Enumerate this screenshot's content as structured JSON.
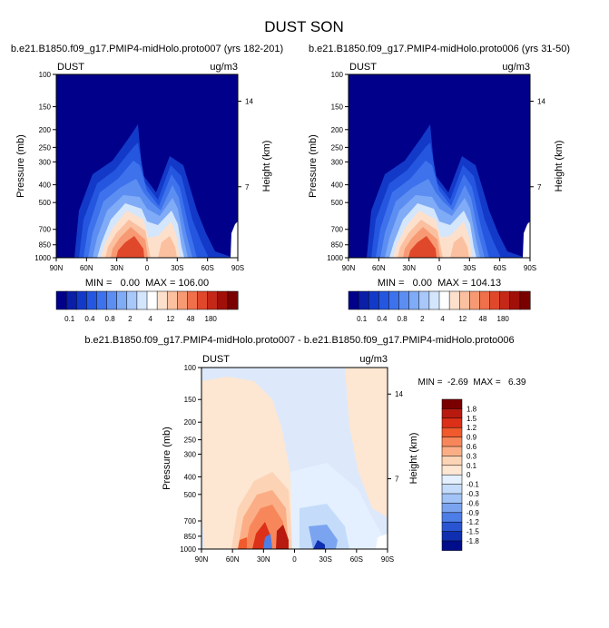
{
  "page": {
    "title": "DUST SON"
  },
  "chart_data": [
    {
      "type": "heatmap",
      "id": "panel1",
      "title": "b.e21.B1850.f09_g17.PMIP4-midHolo.proto007 (yrs 182-201)",
      "corner_left": "DUST",
      "corner_right": "ug/m3",
      "ylabel": "Pressure (mb)",
      "y2label": "Height (km)",
      "xticks": [
        "90N",
        "60N",
        "30N",
        "0",
        "30S",
        "60S",
        "90S"
      ],
      "yticks": [
        "100",
        "150",
        "200",
        "250",
        "300",
        "400",
        "500",
        "700",
        "850",
        "1000"
      ],
      "y2ticks": [
        "14",
        "7"
      ],
      "stats": "MIN =   0.00  MAX = 106.00",
      "colorbar_labels": [
        "0.1",
        "0.4",
        "0.8",
        "2",
        "4",
        "12",
        "48",
        "180"
      ]
    },
    {
      "type": "heatmap",
      "id": "panel2",
      "title": "b.e21.B1850.f09_g17.PMIP4-midHolo.proto006 (yrs 31-50)",
      "corner_left": "DUST",
      "corner_right": "ug/m3",
      "ylabel": "Pressure (mb)",
      "y2label": "Height (km)",
      "xticks": [
        "90N",
        "60N",
        "30N",
        "0",
        "30S",
        "60S",
        "90S"
      ],
      "yticks": [
        "100",
        "150",
        "200",
        "250",
        "300",
        "400",
        "500",
        "700",
        "850",
        "1000"
      ],
      "y2ticks": [
        "14",
        "7"
      ],
      "stats": "MIN =   0.00  MAX = 104.13",
      "colorbar_labels": [
        "0.1",
        "0.4",
        "0.8",
        "2",
        "4",
        "12",
        "48",
        "180"
      ]
    },
    {
      "type": "heatmap",
      "id": "diff",
      "title": "b.e21.B1850.f09_g17.PMIP4-midHolo.proto007 - b.e21.B1850.f09_g17.PMIP4-midHolo.proto006",
      "corner_left": "DUST",
      "corner_right": "ug/m3",
      "ylabel": "Pressure (mb)",
      "y2label": "Height (km)",
      "xticks": [
        "90N",
        "60N",
        "30N",
        "0",
        "30S",
        "60S",
        "90S"
      ],
      "yticks": [
        "100",
        "150",
        "200",
        "250",
        "300",
        "400",
        "500",
        "700",
        "850",
        "1000"
      ],
      "y2ticks": [
        "14",
        "7"
      ],
      "stats": "MIN =  -2.69  MAX =   6.39",
      "colorbar_labels": [
        "1.8",
        "1.5",
        "1.2",
        "0.9",
        "0.6",
        "0.3",
        "0.1",
        "0",
        "-0.1",
        "-0.3",
        "-0.6",
        "-0.9",
        "-1.2",
        "-1.5",
        "-1.8"
      ]
    }
  ],
  "colors": {
    "seq": [
      "#00008a",
      "#0a1ea8",
      "#1339c8",
      "#2456e0",
      "#3d72ec",
      "#5c8ef2",
      "#80abf6",
      "#a8c8fa",
      "#d4e6fc",
      "#ffffff",
      "#fde0cc",
      "#fbc0a0",
      "#f79a74",
      "#f0704c",
      "#e0482c",
      "#c42818",
      "#a01008",
      "#7a0000"
    ],
    "div": [
      "#7a0000",
      "#b81a10",
      "#dc3018",
      "#f05a2c",
      "#f7875a",
      "#fbae86",
      "#fdd3b6",
      "#fde6d2",
      "#e4f0ff",
      "#c4dcfa",
      "#a2c3f6",
      "#7aa4ef",
      "#4d7de6",
      "#2a55d2",
      "#0f2fb0",
      "#000d8a"
    ]
  }
}
